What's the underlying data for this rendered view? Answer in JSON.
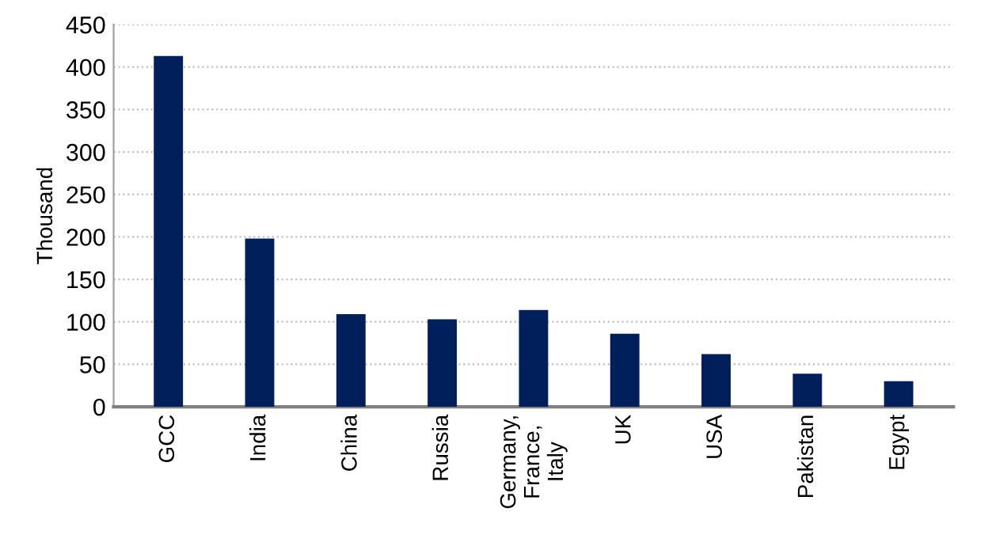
{
  "chart_data": {
    "type": "bar",
    "ylabel": "Thousand",
    "categories": [
      "GCC",
      "India",
      "China",
      "Russia",
      "Germany,\nFrance,\nItaly",
      "UK",
      "USA",
      "Pakistan",
      "Egypt"
    ],
    "values": [
      413,
      198,
      109,
      103,
      114,
      86,
      62,
      39,
      30
    ],
    "color": "#001f5b",
    "ylim": [
      0,
      450
    ],
    "yticks": [
      0,
      50,
      100,
      150,
      200,
      250,
      300,
      350,
      400,
      450
    ],
    "grid": "y"
  }
}
